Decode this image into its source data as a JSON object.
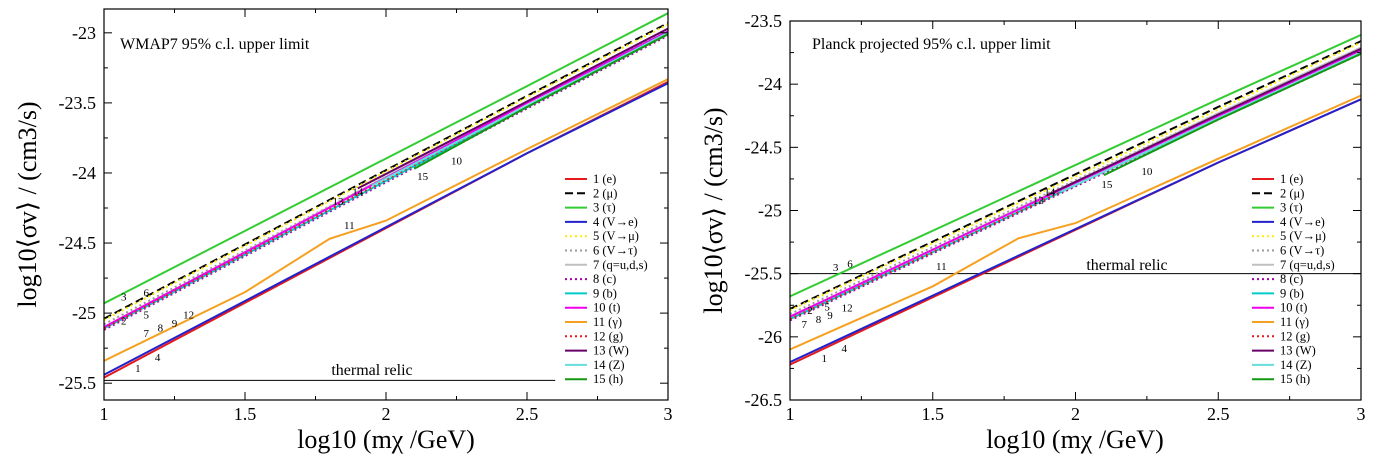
{
  "chart_data": [
    {
      "type": "line",
      "title": "WMAP7 95% c.l. upper limit",
      "xlabel": "log10 (mχ /GeV)",
      "ylabel": "log10⟨σv⟩ / (cm3/s)",
      "xlim": [
        1,
        3
      ],
      "ylim": [
        -25.62,
        -22.83
      ],
      "xticks": [
        "1",
        "1.5",
        "2",
        "2.5",
        "3"
      ],
      "yticks": [
        "-23",
        "-23.5",
        "-24",
        "-24.5",
        "-25",
        "-25.5"
      ],
      "yticks_values": [
        -23,
        -23.5,
        -24,
        -24.5,
        -25,
        -25.5
      ],
      "legend_placement": "right",
      "grid": false,
      "thermal_relic": {
        "label": "thermal relic",
        "value": -25.48,
        "xrange": [
          1,
          2.6
        ]
      },
      "series": [
        {
          "id": "1",
          "name": "1 (e)",
          "color": "#e41a1c",
          "dash": "solid",
          "x": [
            1,
            2.5,
            3
          ],
          "y": [
            -25.46,
            -23.86,
            -23.35
          ],
          "label": "1",
          "label_x": 1.12,
          "label_y": -25.42
        },
        {
          "id": "2",
          "name": "2 (μ)",
          "color": "#000000",
          "dash": "dashed",
          "x": [
            1,
            2.5,
            3
          ],
          "y": [
            -25.04,
            -23.45,
            -22.93
          ],
          "label": "2",
          "label_x": 1.07,
          "label_y": -25.08
        },
        {
          "id": "3",
          "name": "3 (τ)",
          "color": "#33cc33",
          "dash": "solid",
          "x": [
            1,
            2.5,
            3
          ],
          "y": [
            -24.93,
            -23.38,
            -22.86
          ],
          "label": "3",
          "label_x": 1.07,
          "label_y": -24.91
        },
        {
          "id": "4",
          "name": "4 (V→e)",
          "color": "#2222cc",
          "dash": "solid",
          "x": [
            1,
            2.5,
            3
          ],
          "y": [
            -25.44,
            -23.86,
            -23.36
          ],
          "label": "4",
          "label_x": 1.19,
          "label_y": -25.34
        },
        {
          "id": "5",
          "name": "5 (V→μ)",
          "color": "#ffee00",
          "dash": "dotted",
          "x": [
            1,
            2.5,
            3
          ],
          "y": [
            -25.05,
            -23.46,
            -22.94
          ],
          "label": "5",
          "label_x": 1.15,
          "label_y": -25.04
        },
        {
          "id": "6",
          "name": "6 (V→τ)",
          "color": "#999999",
          "dash": "dotted",
          "x": [
            1,
            2.5,
            3
          ],
          "y": [
            -25.08,
            -23.5,
            -22.98
          ],
          "label": "6",
          "label_x": 1.15,
          "label_y": -24.88
        },
        {
          "id": "7",
          "name": "7 (q=u,d,s)",
          "color": "#c0c0c0",
          "dash": "solid",
          "x": [
            1,
            2.5,
            3
          ],
          "y": [
            -25.1,
            -23.49,
            -22.97
          ],
          "label": "7",
          "label_x": 1.15,
          "label_y": -25.17
        },
        {
          "id": "8",
          "name": "8 (c)",
          "color": "#aa00aa",
          "dash": "dotted",
          "x": [
            1,
            2.5,
            3
          ],
          "y": [
            -25.12,
            -23.54,
            -23.02
          ],
          "label": "8",
          "label_x": 1.2,
          "label_y": -25.13
        },
        {
          "id": "9",
          "name": "9 (b)",
          "color": "#00cccc",
          "dash": "solid",
          "x": [
            1,
            2.5,
            3
          ],
          "y": [
            -25.11,
            -23.53,
            -23.01
          ],
          "label": "9",
          "label_x": 1.25,
          "label_y": -25.1
        },
        {
          "id": "10",
          "name": "10 (t)",
          "color": "#ee00ee",
          "dash": "solid",
          "x": [
            1,
            2.5,
            3
          ],
          "y": [
            -25.1,
            -23.5,
            -22.99
          ],
          "label": "10",
          "label_x": 2.25,
          "label_y": -23.94
        },
        {
          "id": "11",
          "name": "11 (γ)",
          "color": "#f5a020",
          "dash": "solid",
          "x": [
            1,
            1.5,
            1.8,
            2,
            2.5,
            3
          ],
          "y": [
            -25.34,
            -24.85,
            -24.47,
            -24.34,
            -23.83,
            -23.33
          ],
          "label": "11",
          "label_x": 1.87,
          "label_y": -24.4
        },
        {
          "id": "12",
          "name": "12 (g)",
          "color": "#e41a1c",
          "dash": "dotted",
          "x": [
            1,
            2.5,
            3
          ],
          "y": [
            -25.11,
            -23.52,
            -23.01
          ],
          "label": "12",
          "label_x": 1.3,
          "label_y": -25.04
        },
        {
          "id": "13",
          "name": "13 (W)",
          "color": "#660066",
          "dash": "solid",
          "x": [
            1.9,
            2.5,
            3
          ],
          "y": [
            -24.11,
            -23.49,
            -22.97
          ],
          "label": "13",
          "label_x": 1.83,
          "label_y": -24.23
        },
        {
          "id": "14",
          "name": "14 (Z)",
          "color": "#66dddd",
          "dash": "solid",
          "x": [
            1.95,
            2.5,
            3
          ],
          "y": [
            -24.09,
            -23.52,
            -23.0
          ],
          "label": "14",
          "label_x": 1.9,
          "label_y": -24.16
        },
        {
          "id": "15",
          "name": "15 (h)",
          "color": "#119911",
          "dash": "solid",
          "x": [
            2.1,
            2.5,
            3
          ],
          "y": [
            -23.97,
            -23.53,
            -23.01
          ],
          "label": "15",
          "label_x": 2.13,
          "label_y": -24.05
        }
      ]
    },
    {
      "type": "line",
      "title": "Planck projected 95% c.l. upper limit",
      "xlabel": "log10 (mχ /GeV)",
      "ylabel": "log10⟨σv⟩ / (cm3/s)",
      "xlim": [
        1,
        3
      ],
      "ylim": [
        -26.5,
        -23.5
      ],
      "xticks": [
        "1",
        "1.5",
        "2",
        "2.5",
        "3"
      ],
      "yticks": [
        "-23.5",
        "-24",
        "-24.5",
        "-25",
        "-25.5",
        "-26",
        "-26.5"
      ],
      "yticks_values": [
        -23.5,
        -24,
        -24.5,
        -25,
        -25.5,
        -26,
        -26.5
      ],
      "legend_placement": "right",
      "grid": false,
      "thermal_relic": {
        "label": "thermal relic",
        "value": -25.5,
        "xrange": [
          1,
          3
        ]
      },
      "series": [
        {
          "id": "1",
          "name": "1 (e)",
          "color": "#e41a1c",
          "dash": "solid",
          "x": [
            1,
            2.5,
            3
          ],
          "y": [
            -26.22,
            -24.62,
            -24.12
          ],
          "label": "1",
          "label_x": 1.12,
          "label_y": -26.2
        },
        {
          "id": "2",
          "name": "2 (μ)",
          "color": "#000000",
          "dash": "dashed",
          "x": [
            1,
            2.5,
            3
          ],
          "y": [
            -25.78,
            -24.18,
            -23.66
          ],
          "label": "2",
          "label_x": 1.07,
          "label_y": -25.82
        },
        {
          "id": "3",
          "name": "3 (τ)",
          "color": "#33cc33",
          "dash": "solid",
          "x": [
            1,
            2.5,
            3
          ],
          "y": [
            -25.68,
            -24.12,
            -23.61
          ],
          "label": "3",
          "label_x": 1.16,
          "label_y": -25.48
        },
        {
          "id": "4",
          "name": "4 (V→e)",
          "color": "#2222cc",
          "dash": "solid",
          "x": [
            1,
            2.5,
            3
          ],
          "y": [
            -26.2,
            -24.62,
            -24.12
          ],
          "label": "4",
          "label_x": 1.19,
          "label_y": -26.12
        },
        {
          "id": "5",
          "name": "5 (V→μ)",
          "color": "#ffee00",
          "dash": "dotted",
          "x": [
            1,
            2.5,
            3
          ],
          "y": [
            -25.79,
            -24.2,
            -23.67
          ],
          "label": "5",
          "label_x": 1.13,
          "label_y": -25.79
        },
        {
          "id": "6",
          "name": "6 (V→τ)",
          "color": "#999999",
          "dash": "dotted",
          "x": [
            1,
            2.5,
            3
          ],
          "y": [
            -25.82,
            -24.23,
            -23.71
          ],
          "label": "6",
          "label_x": 1.21,
          "label_y": -25.45
        },
        {
          "id": "7",
          "name": "7 (q=u,d,s)",
          "color": "#c0c0c0",
          "dash": "solid",
          "x": [
            1,
            2.5,
            3
          ],
          "y": [
            -25.85,
            -24.23,
            -23.71
          ],
          "label": "7",
          "label_x": 1.05,
          "label_y": -25.93
        },
        {
          "id": "8",
          "name": "8 (c)",
          "color": "#aa00aa",
          "dash": "dotted",
          "x": [
            1,
            2.5,
            3
          ],
          "y": [
            -25.87,
            -24.28,
            -23.76
          ],
          "label": "8",
          "label_x": 1.1,
          "label_y": -25.89
        },
        {
          "id": "9",
          "name": "9 (b)",
          "color": "#00cccc",
          "dash": "solid",
          "x": [
            1,
            2.5,
            3
          ],
          "y": [
            -25.86,
            -24.27,
            -23.75
          ],
          "label": "9",
          "label_x": 1.14,
          "label_y": -25.86
        },
        {
          "id": "10",
          "name": "10 (t)",
          "color": "#ee00ee",
          "dash": "solid",
          "x": [
            1,
            2.5,
            3
          ],
          "y": [
            -25.84,
            -24.25,
            -23.73
          ],
          "label": "10",
          "label_x": 2.25,
          "label_y": -24.72
        },
        {
          "id": "11",
          "name": "11 (γ)",
          "color": "#f5a020",
          "dash": "solid",
          "x": [
            1,
            1.5,
            1.8,
            2,
            2.5,
            3
          ],
          "y": [
            -26.1,
            -25.6,
            -25.22,
            -25.1,
            -24.59,
            -24.09
          ],
          "label": "11",
          "label_x": 1.53,
          "label_y": -25.47
        },
        {
          "id": "12",
          "name": "12 (g)",
          "color": "#e41a1c",
          "dash": "dotted",
          "x": [
            1,
            2.5,
            3
          ],
          "y": [
            -25.86,
            -24.27,
            -23.76
          ],
          "label": "12",
          "label_x": 1.2,
          "label_y": -25.8
        },
        {
          "id": "13",
          "name": "13 (W)",
          "color": "#660066",
          "dash": "solid",
          "x": [
            1.9,
            2.5,
            3
          ],
          "y": [
            -24.88,
            -24.24,
            -23.72
          ],
          "label": "13",
          "label_x": 1.87,
          "label_y": -24.95
        },
        {
          "id": "14",
          "name": "14 (Z)",
          "color": "#66dddd",
          "dash": "solid",
          "x": [
            1.95,
            2.5,
            3
          ],
          "y": [
            -24.85,
            -24.27,
            -23.75
          ],
          "label": "14",
          "label_x": 1.91,
          "label_y": -24.88
        },
        {
          "id": "15",
          "name": "15 (h)",
          "color": "#119911",
          "dash": "solid",
          "x": [
            2.1,
            2.5,
            3
          ],
          "y": [
            -24.72,
            -24.28,
            -23.76
          ],
          "label": "15",
          "label_x": 2.11,
          "label_y": -24.82
        }
      ]
    }
  ]
}
